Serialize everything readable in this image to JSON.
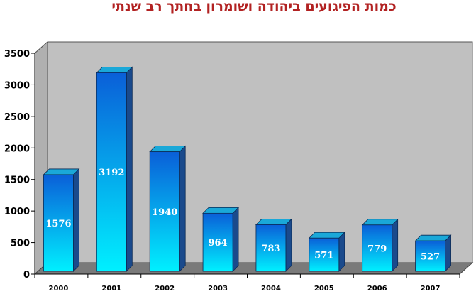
{
  "chart_data": {
    "type": "bar",
    "title": "כמות הפיגועים ביהודה ושומרון בחתך רב שנתי",
    "xlabel": "",
    "ylabel": "",
    "categories": [
      "2000",
      "2001",
      "2002",
      "2003",
      "2004",
      "2005",
      "2006",
      "2007"
    ],
    "values": [
      1576,
      3192,
      1940,
      964,
      783,
      571,
      779,
      527
    ],
    "data_labels": [
      "1576",
      "3192",
      "1940",
      "964",
      "783",
      "571",
      "779",
      "527"
    ],
    "yticks": [
      "0",
      "500",
      "1000",
      "1500",
      "2000",
      "2500",
      "3000",
      "3500"
    ],
    "ylim": [
      0,
      3500
    ],
    "grid": false,
    "legend": "none",
    "style": "3d-bar",
    "colors": {
      "title": "#b22222",
      "wall": "#c0c0c0",
      "floor": "#7a7a7a",
      "bar_light": "#00f0ff",
      "bar_dark": "#0a5fd8",
      "bar_side": "#1a4a8c",
      "bar_top": "#1aa8d8"
    }
  }
}
